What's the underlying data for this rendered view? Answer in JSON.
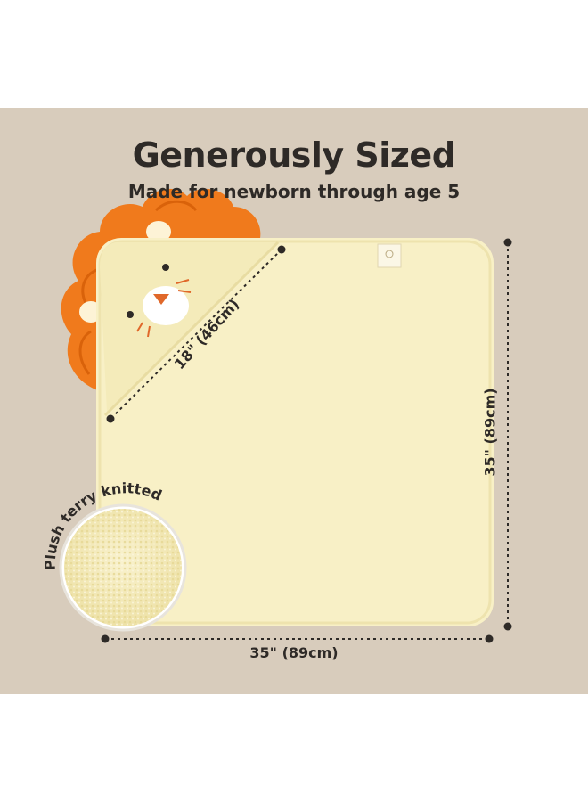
{
  "headline": "Generously Sized",
  "subheadline": "Made for newborn through age 5",
  "dimensions": {
    "width_label": "35\" (89cm)",
    "height_label": "35\" (89cm)",
    "hood_label": "18\" (46cm)"
  },
  "callout": {
    "label": "Plush terry knitted"
  },
  "colors": {
    "background": "#d8ccbc",
    "towel": "#f8f0c6",
    "mane": "#f07a1c",
    "text": "#2e2a27"
  },
  "icons": [
    "lion-hood-icon",
    "brand-tag-icon",
    "terry-texture-circle"
  ]
}
